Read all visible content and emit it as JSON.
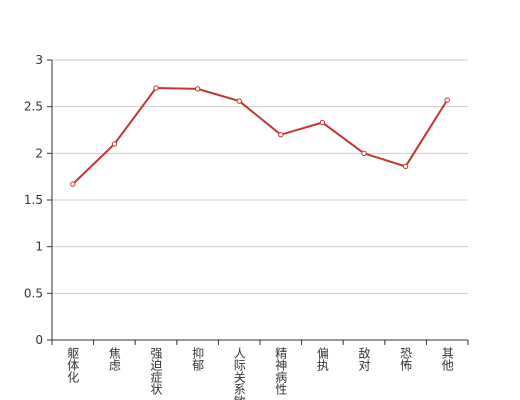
{
  "chart_data": {
    "type": "line",
    "categories": [
      "躯体化",
      "焦虑",
      "强迫症状",
      "抑郁",
      "人际关系敏感",
      "精神病性",
      "偏执",
      "敌对",
      "恐怖",
      "其他"
    ],
    "values": [
      1.67,
      2.1,
      2.7,
      2.69,
      2.56,
      2.2,
      2.33,
      2.0,
      1.86,
      2.57
    ],
    "color": "#c23531",
    "ylim": [
      0,
      3
    ],
    "yticks": [
      0,
      0.5,
      1,
      1.5,
      2,
      2.5,
      3
    ],
    "grid": true
  }
}
